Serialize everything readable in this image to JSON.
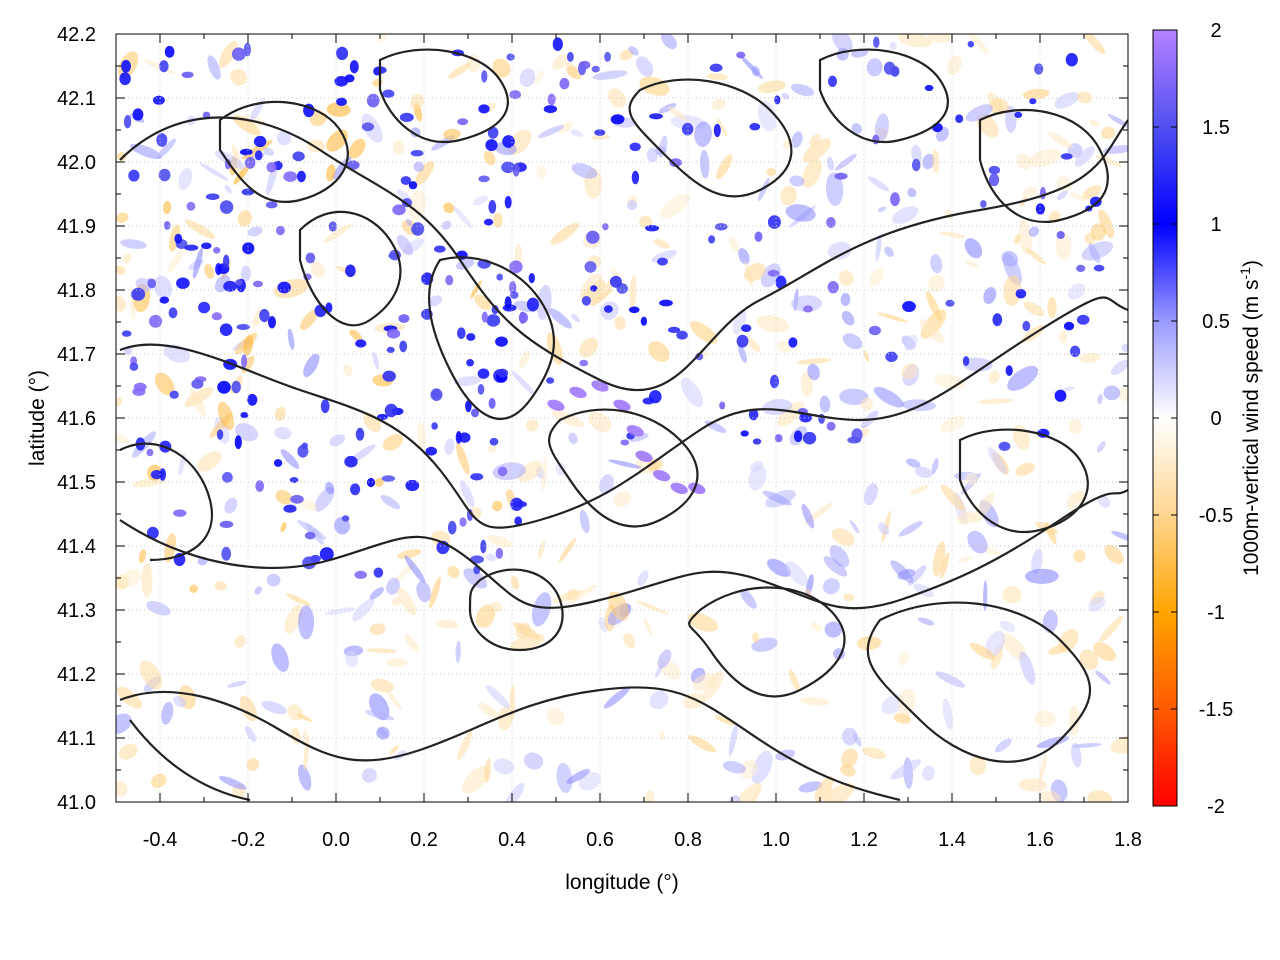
{
  "chart_data": {
    "type": "heatmap",
    "title": "",
    "xlabel": "longitude (°)",
    "ylabel": "latitude (°)",
    "colorbar_label": "1000m-vertical wind speed (m s⁻¹)",
    "colorbar_label_parts": {
      "text": "1000m-vertical wind speed (m s",
      "sup": "-1",
      "tail": ")"
    },
    "xlim": [
      -0.5,
      1.8
    ],
    "ylim": [
      41.0,
      42.2
    ],
    "clim": [
      -2,
      2
    ],
    "xticks": [
      "-0.4",
      "-0.2",
      "0.0",
      "0.2",
      "0.4",
      "0.6",
      "0.8",
      "1.0",
      "1.2",
      "1.4",
      "1.6",
      "1.8"
    ],
    "xtick_values": [
      -0.4,
      -0.2,
      0.0,
      0.2,
      0.4,
      0.6,
      0.8,
      1.0,
      1.2,
      1.4,
      1.6,
      1.8
    ],
    "yticks": [
      "41.0",
      "41.1",
      "41.2",
      "41.3",
      "41.4",
      "41.5",
      "41.6",
      "41.7",
      "41.8",
      "41.9",
      "42.0",
      "42.1",
      "42.2"
    ],
    "ytick_values": [
      41.0,
      41.1,
      41.2,
      41.3,
      41.4,
      41.5,
      41.6,
      41.7,
      41.8,
      41.9,
      42.0,
      42.1,
      42.2
    ],
    "cbar_ticks": [
      "2",
      "1.5",
      "1",
      "0.5",
      "0",
      "-0.5",
      "-1",
      "-1.5",
      "-2"
    ],
    "cbar_tick_values": [
      2,
      1.5,
      1,
      0.5,
      0,
      -0.5,
      -1,
      -1.5,
      -2
    ],
    "colormap": [
      {
        "value": -2,
        "color": "#ff0000"
      },
      {
        "value": -1.5,
        "color": "#ff5a00"
      },
      {
        "value": -1,
        "color": "#ffa500"
      },
      {
        "value": -0.5,
        "color": "#ffd690"
      },
      {
        "value": 0,
        "color": "#ffffff"
      },
      {
        "value": 0.5,
        "color": "#9a9aff"
      },
      {
        "value": 1,
        "color": "#0000ff"
      },
      {
        "value": 1.5,
        "color": "#5050f0"
      },
      {
        "value": 2,
        "color": "#b482ff"
      }
    ],
    "contour_color": "#222222",
    "grid": true,
    "grid_style": "dotted"
  }
}
